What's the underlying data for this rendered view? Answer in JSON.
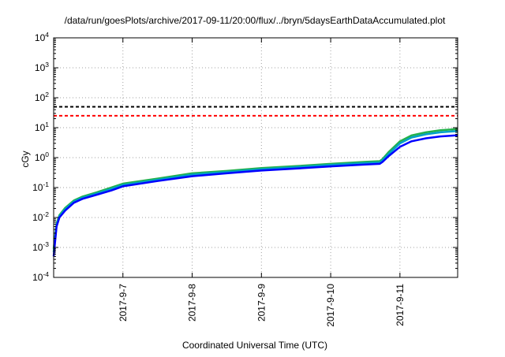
{
  "colors": {
    "background": "#ffffff",
    "grid": "#a0a0a0",
    "threshold_high": "#000000",
    "threshold_low": "#ff0000",
    "series_green": "#22b14c",
    "series_cyan": "#00a0c8",
    "series_blue": "#0000ff"
  },
  "chart_data": {
    "type": "line",
    "title": "/data/run/goesPlots/archive/2017-09-11/20:00/flux/../bryn/5daysEarthDataAccumulated.plot",
    "xlabel": "Coordinated Universal Time (UTC)",
    "ylabel": "cGy",
    "y_scale": "log",
    "ylim": [
      0.0001,
      10000
    ],
    "y_ticks": [
      {
        "base": "10",
        "exp": "-4",
        "value": 0.0001
      },
      {
        "base": "10",
        "exp": "-3",
        "value": 0.001
      },
      {
        "base": "10",
        "exp": "-2",
        "value": 0.01
      },
      {
        "base": "10",
        "exp": "-1",
        "value": 0.1
      },
      {
        "base": "10",
        "exp": "0",
        "value": 1
      },
      {
        "base": "10",
        "exp": "1",
        "value": 10
      },
      {
        "base": "10",
        "exp": "2",
        "value": 100
      },
      {
        "base": "10",
        "exp": "3",
        "value": 1000
      },
      {
        "base": "10",
        "exp": "4",
        "value": 10000
      }
    ],
    "xlim": [
      "2017-09-06T00:00",
      "2017-09-11T20:00"
    ],
    "x_ticks": [
      {
        "label": "2017-9-7",
        "value": "2017-09-07T00:00"
      },
      {
        "label": "2017-9-8",
        "value": "2017-09-08T00:00"
      },
      {
        "label": "2017-9-9",
        "value": "2017-09-09T00:00"
      },
      {
        "label": "2017-9-10",
        "value": "2017-09-10T00:00"
      },
      {
        "label": "2017-9-11",
        "value": "2017-09-11T00:00"
      }
    ],
    "grid": true,
    "legend": "none",
    "reference_lines": [
      {
        "y": 50,
        "color": "#000000",
        "style": "dashed"
      },
      {
        "y": 25,
        "color": "#ff0000",
        "style": "dashed"
      }
    ],
    "series": [
      {
        "color": "#22b14c",
        "points": [
          [
            "2017-09-06T00:00",
            0.0009
          ],
          [
            "2017-09-06T01:00",
            0.0063
          ],
          [
            "2017-09-06T02:00",
            0.012
          ],
          [
            "2017-09-06T04:00",
            0.021
          ],
          [
            "2017-09-06T07:00",
            0.037
          ],
          [
            "2017-09-06T10:00",
            0.05
          ],
          [
            "2017-09-06T15:00",
            0.07
          ],
          [
            "2017-09-06T20:00",
            0.1
          ],
          [
            "2017-09-07T00:00",
            0.135
          ],
          [
            "2017-09-07T12:00",
            0.2
          ],
          [
            "2017-09-08T00:00",
            0.3
          ],
          [
            "2017-09-08T12:00",
            0.36
          ],
          [
            "2017-09-09T00:00",
            0.45
          ],
          [
            "2017-09-09T12:00",
            0.52
          ],
          [
            "2017-09-10T00:00",
            0.62
          ],
          [
            "2017-09-10T12:00",
            0.72
          ],
          [
            "2017-09-10T17:00",
            0.76
          ],
          [
            "2017-09-10T18:00",
            0.9
          ],
          [
            "2017-09-10T20:00",
            1.5
          ],
          [
            "2017-09-11T00:00",
            3.5
          ],
          [
            "2017-09-11T04:00",
            5.5
          ],
          [
            "2017-09-11T09:00",
            7.0
          ],
          [
            "2017-09-11T14:00",
            8.2
          ],
          [
            "2017-09-11T20:00",
            9.0
          ]
        ]
      },
      {
        "color": "#00a0c8",
        "points": [
          [
            "2017-09-06T00:00",
            0.0007
          ],
          [
            "2017-09-06T01:00",
            0.0056
          ],
          [
            "2017-09-06T02:00",
            0.011
          ],
          [
            "2017-09-06T04:00",
            0.019
          ],
          [
            "2017-09-06T07:00",
            0.034
          ],
          [
            "2017-09-06T10:00",
            0.046
          ],
          [
            "2017-09-06T15:00",
            0.064
          ],
          [
            "2017-09-06T20:00",
            0.09
          ],
          [
            "2017-09-07T00:00",
            0.122
          ],
          [
            "2017-09-07T12:00",
            0.182
          ],
          [
            "2017-09-08T00:00",
            0.27
          ],
          [
            "2017-09-08T12:00",
            0.33
          ],
          [
            "2017-09-09T00:00",
            0.41
          ],
          [
            "2017-09-09T12:00",
            0.48
          ],
          [
            "2017-09-10T00:00",
            0.57
          ],
          [
            "2017-09-10T12:00",
            0.66
          ],
          [
            "2017-09-10T17:00",
            0.69
          ],
          [
            "2017-09-10T18:00",
            0.82
          ],
          [
            "2017-09-10T20:00",
            1.3
          ],
          [
            "2017-09-11T00:00",
            3.0
          ],
          [
            "2017-09-11T04:00",
            4.7
          ],
          [
            "2017-09-11T09:00",
            6.0
          ],
          [
            "2017-09-11T14:00",
            7.0
          ],
          [
            "2017-09-11T20:00",
            7.7
          ]
        ]
      },
      {
        "color": "#0000ff",
        "points": [
          [
            "2017-09-06T00:00",
            0.0005
          ],
          [
            "2017-09-06T01:00",
            0.005
          ],
          [
            "2017-09-06T02:00",
            0.01
          ],
          [
            "2017-09-06T04:00",
            0.017
          ],
          [
            "2017-09-06T07:00",
            0.031
          ],
          [
            "2017-09-06T10:00",
            0.042
          ],
          [
            "2017-09-06T15:00",
            0.058
          ],
          [
            "2017-09-06T20:00",
            0.08
          ],
          [
            "2017-09-07T00:00",
            0.11
          ],
          [
            "2017-09-07T12:00",
            0.165
          ],
          [
            "2017-09-08T00:00",
            0.24
          ],
          [
            "2017-09-08T12:00",
            0.3
          ],
          [
            "2017-09-09T00:00",
            0.37
          ],
          [
            "2017-09-09T12:00",
            0.43
          ],
          [
            "2017-09-10T00:00",
            0.51
          ],
          [
            "2017-09-10T12:00",
            0.59
          ],
          [
            "2017-09-10T17:00",
            0.62
          ],
          [
            "2017-09-10T18:00",
            0.72
          ],
          [
            "2017-09-10T20:00",
            1.1
          ],
          [
            "2017-09-11T00:00",
            2.3
          ],
          [
            "2017-09-11T04:00",
            3.5
          ],
          [
            "2017-09-11T09:00",
            4.4
          ],
          [
            "2017-09-11T14:00",
            5.1
          ],
          [
            "2017-09-11T20:00",
            5.6
          ]
        ]
      }
    ]
  }
}
